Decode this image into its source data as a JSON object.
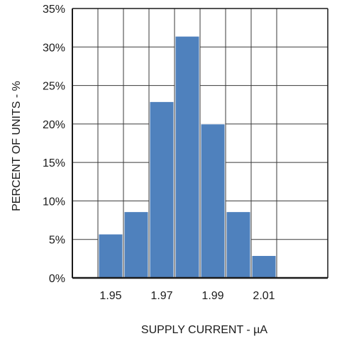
{
  "chart_data": {
    "type": "bar",
    "title": "",
    "xlabel": "SUPPLY CURRENT - µA",
    "ylabel": "PERCENT OF UNITS - %",
    "ylim": [
      0,
      35
    ],
    "xlim": [
      1.935,
      2.035
    ],
    "grid": true,
    "bar_color": "#4f81bd",
    "bins": [
      {
        "from": 1.945,
        "to": 1.955,
        "value": 5.7
      },
      {
        "from": 1.955,
        "to": 1.965,
        "value": 8.6
      },
      {
        "from": 1.965,
        "to": 1.975,
        "value": 22.9
      },
      {
        "from": 1.975,
        "to": 1.985,
        "value": 31.4
      },
      {
        "from": 1.985,
        "to": 1.995,
        "value": 20.0
      },
      {
        "from": 1.995,
        "to": 2.005,
        "value": 8.6
      },
      {
        "from": 2.005,
        "to": 2.015,
        "value": 2.9
      }
    ],
    "y_ticks": [
      {
        "value": 0,
        "label": "0%"
      },
      {
        "value": 5,
        "label": "5%"
      },
      {
        "value": 10,
        "label": "10%"
      },
      {
        "value": 15,
        "label": "15%"
      },
      {
        "value": 20,
        "label": "20%"
      },
      {
        "value": 25,
        "label": "25%"
      },
      {
        "value": 30,
        "label": "30%"
      },
      {
        "value": 35,
        "label": "35%"
      }
    ],
    "x_ticks": [
      {
        "value": 1.95,
        "label": "1.95"
      },
      {
        "value": 1.97,
        "label": "1.97"
      },
      {
        "value": 1.99,
        "label": "1.99"
      },
      {
        "value": 2.01,
        "label": "2.01"
      }
    ],
    "x_gridlines": [
      1.945,
      1.955,
      1.965,
      1.975,
      1.985,
      1.995,
      2.005,
      2.015
    ]
  }
}
